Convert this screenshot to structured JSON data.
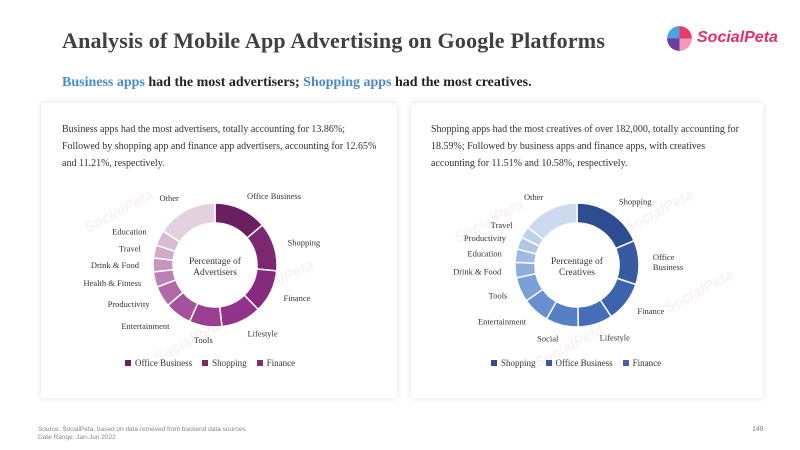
{
  "header": {
    "title": "Analysis of Mobile App Advertising on Google Platforms",
    "logo_text": "SocialPeta"
  },
  "subtitle": {
    "part1": "Business apps",
    "part2": " had the most advertisers; ",
    "part3": "Shopping apps",
    "part4": " had the most creatives."
  },
  "left_card": {
    "text": "Business apps had the most advertisers, totally accounting for 13.86%; Followed by shopping app and finance app advertisers, accounting for 12.65% and 11.21%, respectively."
  },
  "right_card": {
    "text": "Shopping apps had the most creatives of over 182,000, totally accounting for 18.59%; Followed by business apps and finance apps, with creatives accounting for 11.51% and 10.58%, respectively."
  },
  "footer": {
    "source": "Source: SocialPeta, based on data retrieved from backend data sources",
    "date_range": "Date Range: Jan-Jun 2022",
    "page": "148"
  },
  "chart_data": [
    {
      "type": "pie",
      "center_label": [
        "Percentage of",
        "Advertisers"
      ],
      "categories": [
        "Office Business",
        "Shopping",
        "Finance",
        "Lifestyle",
        "Tools",
        "Entertainment",
        "Productivity",
        "Health & Fitness",
        "Drink & Food",
        "Travel",
        "Education",
        "Other"
      ],
      "values": [
        13.86,
        12.65,
        11.21,
        10.5,
        8.5,
        7.0,
        5.5,
        4.0,
        3.6,
        3.4,
        4.0,
        15.78
      ],
      "colors": [
        "#6c1f60",
        "#7b2772",
        "#872a7e",
        "#92328a",
        "#9b3f93",
        "#a5519c",
        "#b06aa7",
        "#bb82b3",
        "#c596be",
        "#cfaac9",
        "#d8bcd3",
        "#e3d1df"
      ],
      "legend": [
        "Office Business",
        "Shopping",
        "Finance"
      ]
    },
    {
      "type": "pie",
      "center_label": [
        "Percentage of",
        "Creatives"
      ],
      "categories": [
        "Shopping",
        "Office Business",
        "Finance",
        "Lifestyle",
        "Social",
        "Entertainment",
        "Tools",
        "Drink & Food",
        "Education",
        "Productivity",
        "Travel",
        "Other"
      ],
      "values": [
        18.59,
        11.51,
        10.58,
        9.0,
        8.5,
        7.0,
        6.5,
        4.0,
        3.5,
        3.2,
        3.0,
        14.62
      ],
      "colors": [
        "#2e4d91",
        "#3759a2",
        "#3e63ae",
        "#456dba",
        "#5580c6",
        "#6890d0",
        "#7b9fd6",
        "#8fadda",
        "#a1badf",
        "#b1c6e5",
        "#bfd0ea",
        "#ccd9ee"
      ],
      "legend": [
        "Shopping",
        "Office Business",
        "Finance"
      ]
    }
  ]
}
